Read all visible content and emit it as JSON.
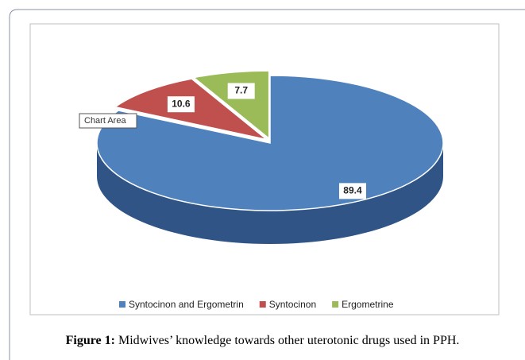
{
  "chart_data": {
    "type": "pie3d",
    "categories": [
      "Syntocinon and Ergometrin",
      "Syntocinon",
      "Ergometrine"
    ],
    "values": [
      89.4,
      10.6,
      7.7
    ],
    "colors": [
      "#4f81bd",
      "#c0504d",
      "#9bbb59"
    ],
    "side_colors": [
      "#2f5485",
      "#8c3331",
      "#6f8a3c"
    ],
    "tooltip": "Chart Area",
    "caption_label": "Figure 1:",
    "caption_text": "Midwives’ knowledge towards other uterotonic drugs used in PPH."
  }
}
